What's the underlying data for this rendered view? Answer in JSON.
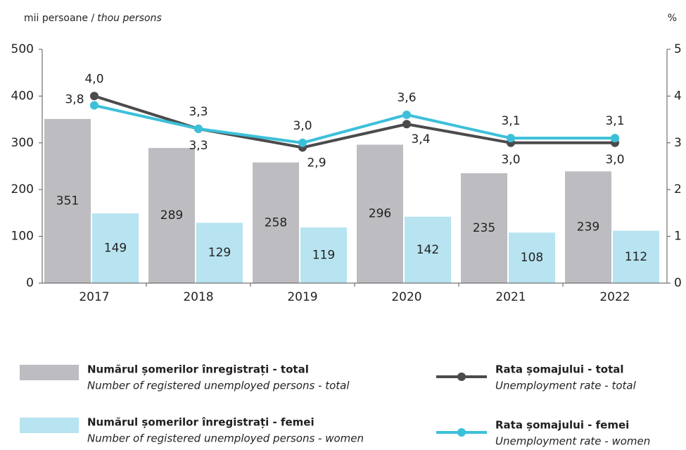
{
  "chart_data": {
    "type": "bar_line",
    "ylabel": [
      "mii persoane /",
      "thou persons"
    ],
    "y2label": "%",
    "categories": [
      "2017",
      "2018",
      "2019",
      "2020",
      "2021",
      "2022"
    ],
    "ylim": [
      0,
      500
    ],
    "yticks": [
      0,
      100,
      200,
      300,
      400,
      500
    ],
    "y2lim": [
      0,
      5
    ],
    "y2ticks": [
      0,
      1,
      2,
      3,
      4,
      5
    ],
    "series": [
      {
        "name": "Numărul șomerilor înregistrați - total",
        "subname": "Number of registered unemployed persons - total",
        "type": "bar",
        "color": "#bdbdc1",
        "values": [
          351,
          289,
          258,
          296,
          235,
          239
        ]
      },
      {
        "name": "Numărul șomerilor înregistrați - femei",
        "subname": "Number of registered unemployed persons - women",
        "type": "bar",
        "color": "#b7e4f0",
        "values": [
          149,
          129,
          119,
          142,
          108,
          112
        ]
      },
      {
        "name": "Rata șomajului - total",
        "subname": "Unemployment rate - total",
        "type": "line",
        "axis": "y2",
        "color": "#4b4b4d",
        "values": [
          4.0,
          3.3,
          2.9,
          3.4,
          3.0,
          3.0
        ],
        "value_labels": [
          "4,0",
          "3,3",
          "2,9",
          "3,4",
          "3,0",
          "3,0"
        ]
      },
      {
        "name": "Rata șomajului - femei",
        "subname": "Unemployment rate - women",
        "type": "line",
        "axis": "y2",
        "color": "#3cc0da",
        "values": [
          3.8,
          3.3,
          3.0,
          3.6,
          3.1,
          3.1
        ],
        "value_labels": [
          "3,8",
          "3,3",
          "3,0",
          "3,6",
          "3,1",
          "3,1"
        ]
      }
    ]
  }
}
